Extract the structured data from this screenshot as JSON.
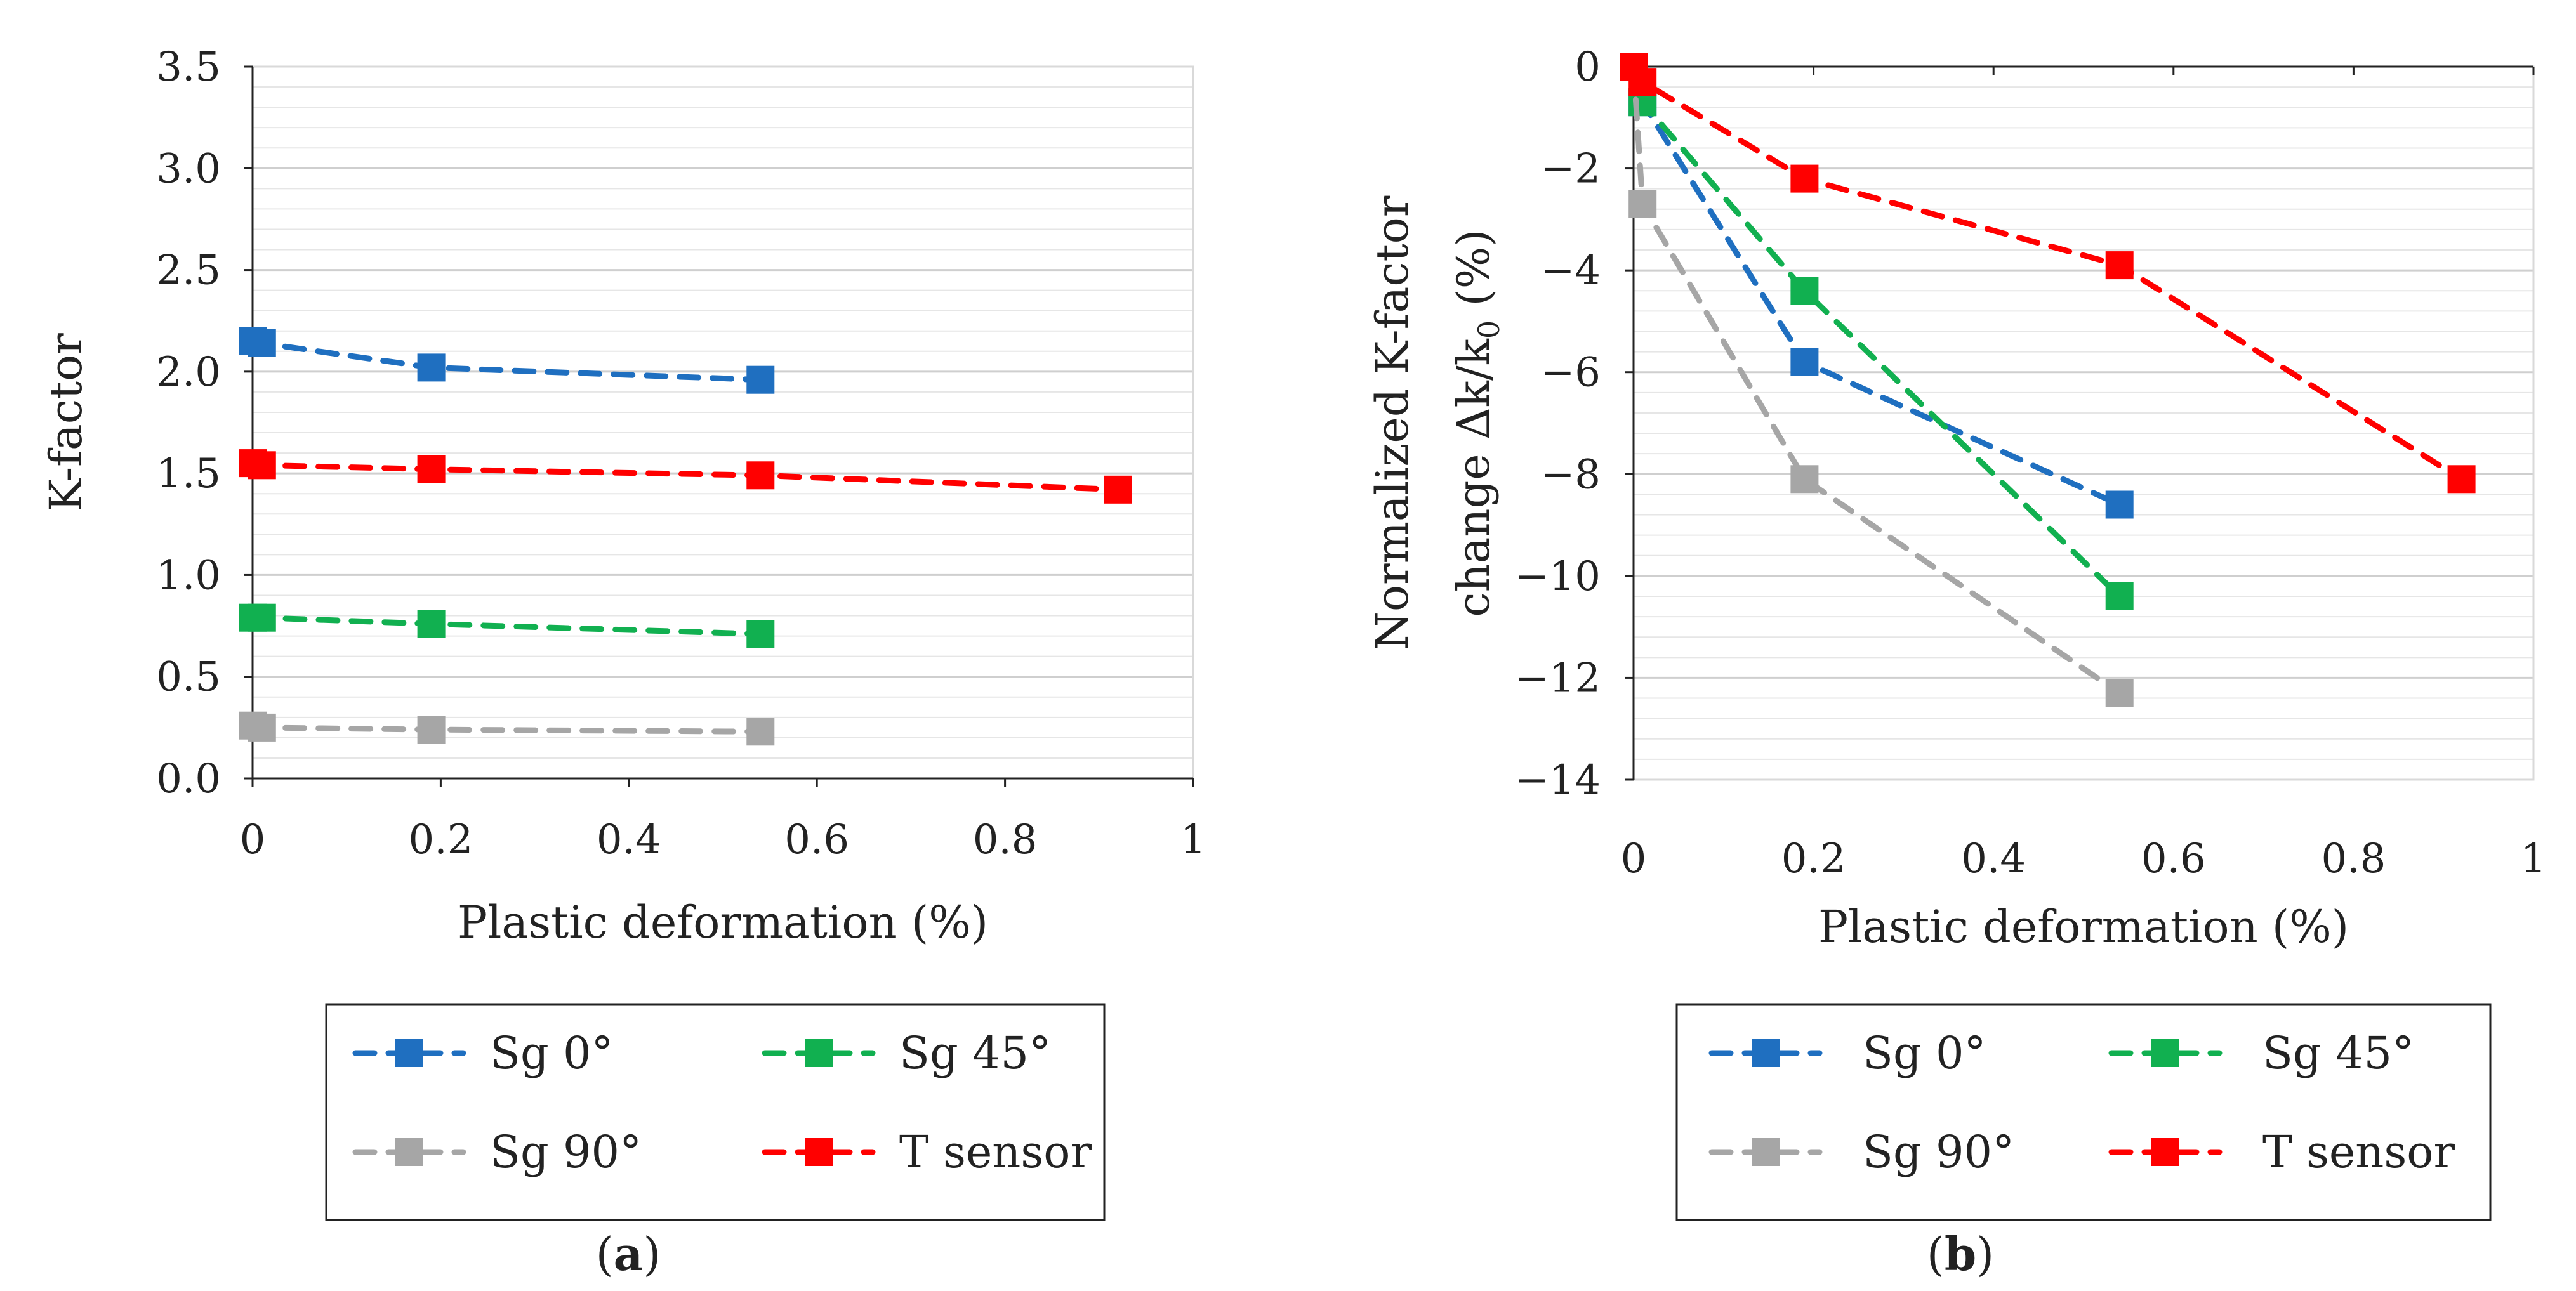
{
  "chart_data": [
    {
      "panel": "a",
      "panel_label": "a",
      "type": "line",
      "title": "",
      "xlabel": "Plastic deformation (%)",
      "ylabel": "K-factor",
      "xlim": [
        0,
        1
      ],
      "ylim": [
        0,
        3.5
      ],
      "xticks": [
        0,
        0.2,
        0.4,
        0.6,
        0.8,
        1
      ],
      "xtick_labels": [
        "0",
        "0.2",
        "0.4",
        "0.6",
        "0.8",
        "1"
      ],
      "yticks": [
        0,
        0.5,
        1,
        1.5,
        2,
        2.5,
        3,
        3.5
      ],
      "ytick_labels": [
        "0.0",
        "0.5",
        "1.0",
        "1.5",
        "2.0",
        "2.5",
        "3.0",
        "3.5"
      ],
      "minor_grid_step": 0.1,
      "legend_position": "bottom",
      "series": [
        {
          "name": "Sg 0°",
          "color": "#1f6fc0",
          "x": [
            0,
            0.01,
            0.19,
            0.54
          ],
          "y": [
            2.15,
            2.14,
            2.02,
            1.96
          ]
        },
        {
          "name": "Sg 45°",
          "color": "#11b050",
          "x": [
            0,
            0.01,
            0.19,
            0.54
          ],
          "y": [
            0.79,
            0.79,
            0.76,
            0.71
          ]
        },
        {
          "name": "Sg 90°",
          "color": "#a6a6a6",
          "x": [
            0,
            0.01,
            0.19,
            0.54
          ],
          "y": [
            0.26,
            0.25,
            0.24,
            0.23
          ]
        },
        {
          "name": "T sensor",
          "color": "#ff0000",
          "x": [
            0,
            0.01,
            0.19,
            0.54,
            0.92
          ],
          "y": [
            1.55,
            1.54,
            1.52,
            1.49,
            1.42
          ]
        }
      ]
    },
    {
      "panel": "b",
      "panel_label": "b",
      "type": "line",
      "title": "",
      "xlabel": "Plastic deformation (%)",
      "ylabel_line1": "Normalized K-factor",
      "ylabel_line2_prefix": "change Δk/k",
      "ylabel_line2_subscript": "0",
      "ylabel_line2_suffix": " (%)",
      "xlim": [
        0,
        1
      ],
      "ylim": [
        -14,
        0
      ],
      "xticks": [
        0,
        0.2,
        0.4,
        0.6,
        0.8,
        1
      ],
      "xtick_labels": [
        "0",
        "0.2",
        "0.4",
        "0.6",
        "0.8",
        "1"
      ],
      "yticks": [
        -14,
        -12,
        -10,
        -8,
        -6,
        -4,
        -2,
        0
      ],
      "ytick_labels": [
        "−14",
        "−12",
        "−10",
        "−8",
        "−6",
        "−4",
        "−2",
        "0"
      ],
      "minor_grid_step": 0.4,
      "legend_position": "bottom",
      "series": [
        {
          "name": "Sg 0°",
          "color": "#1f6fc0",
          "x": [
            0,
            0.01,
            0.19,
            0.54
          ],
          "y": [
            0,
            -0.7,
            -5.8,
            -8.6
          ]
        },
        {
          "name": "Sg 45°",
          "color": "#11b050",
          "x": [
            0,
            0.01,
            0.19,
            0.54
          ],
          "y": [
            0,
            -0.7,
            -4.4,
            -10.4
          ]
        },
        {
          "name": "Sg 90°",
          "color": "#a6a6a6",
          "x": [
            0,
            0.01,
            0.19,
            0.54
          ],
          "y": [
            0,
            -2.7,
            -8.1,
            -12.3
          ]
        },
        {
          "name": "T sensor",
          "color": "#ff0000",
          "x": [
            0,
            0.01,
            0.19,
            0.54,
            0.92
          ],
          "y": [
            0,
            -0.3,
            -2.2,
            -3.9,
            -8.1
          ]
        }
      ]
    }
  ]
}
